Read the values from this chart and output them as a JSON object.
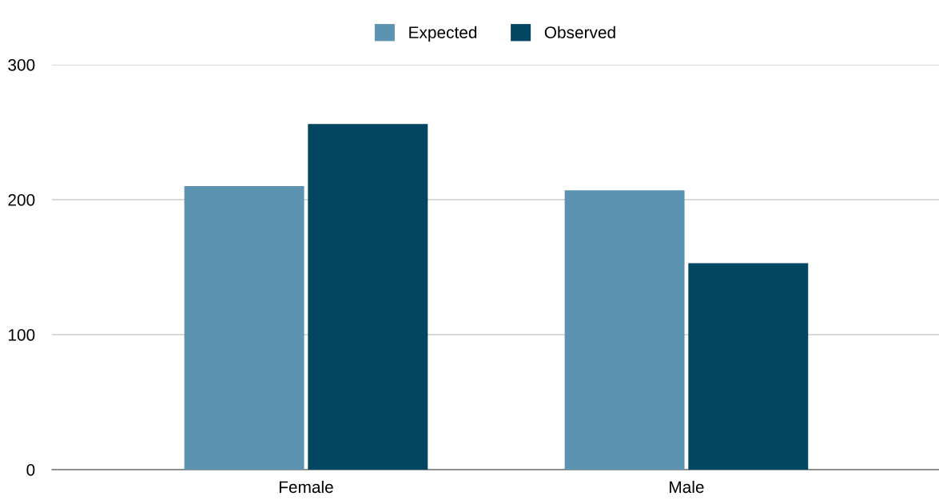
{
  "chart_data": {
    "type": "bar",
    "categories": [
      "Female",
      "Male"
    ],
    "series": [
      {
        "name": "Expected",
        "color": "#5b93b0",
        "values": [
          210,
          207
        ]
      },
      {
        "name": "Observed",
        "color": "#024661",
        "values": [
          256,
          153
        ]
      }
    ],
    "ylim": [
      0,
      300
    ],
    "yticks": [
      0,
      100,
      200,
      300
    ],
    "grid": "y",
    "legend": "top"
  }
}
